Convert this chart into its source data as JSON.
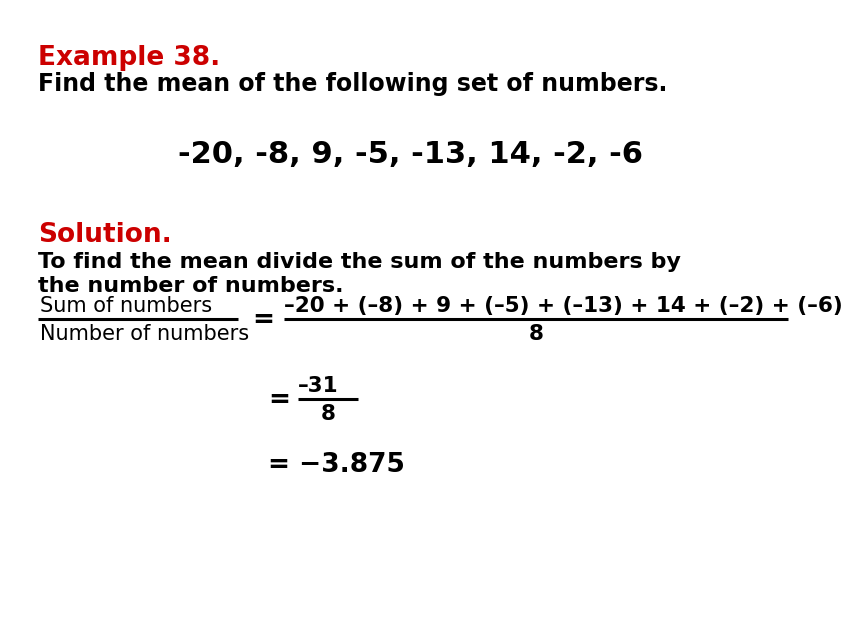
{
  "background_color": "#ffffff",
  "title_text": "Example 38.",
  "title_color": "#cc0000",
  "title_fontsize": 19,
  "subtitle_text": "Find the mean of the following set of numbers.",
  "subtitle_fontsize": 17,
  "numbers_text": "-20, -8, 9, -5, -13, 14, -2, -6",
  "numbers_fontsize": 22,
  "solution_label": "Solution.",
  "solution_color": "#cc0000",
  "solution_fontsize": 19,
  "instruction_line1": "To find the mean divide the sum of the numbers by",
  "instruction_line2": "the number of numbers.",
  "instruction_fontsize": 16,
  "frac_numerator_left": "Sum of numbers",
  "frac_denominator_left": "Number of numbers",
  "frac_num_right": "–20 + (–8) + 9 + (–5) + (–13) + 14 + (–2) + (–6)",
  "frac_den_right": "8",
  "step2_num": "–31",
  "step2_den": "8",
  "step3": "= −3.875",
  "math_fontsize": 17
}
